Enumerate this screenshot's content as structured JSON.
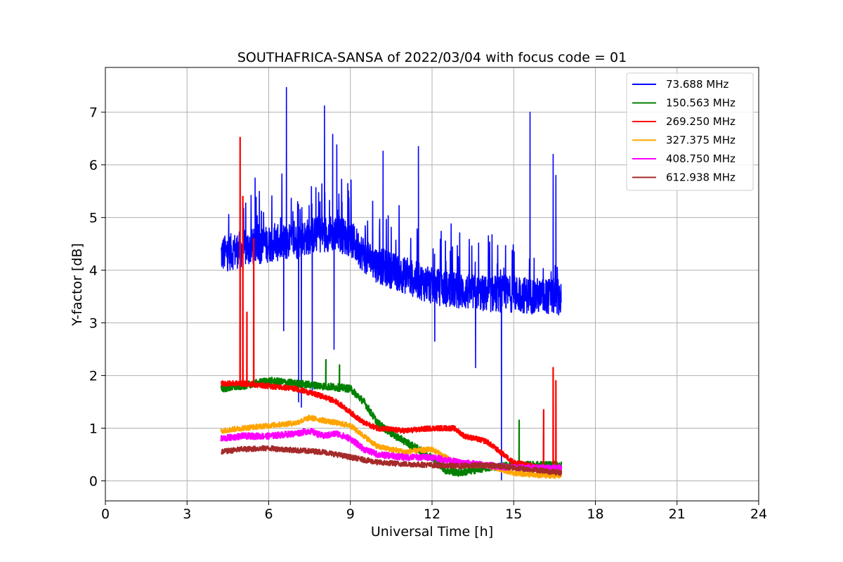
{
  "chart_data": {
    "type": "line",
    "title": "SOUTHAFRICA-SANSA of 2022/03/04 with focus code = 01",
    "xlabel": "Universal Time [h]",
    "ylabel": "Y-factor [dB]",
    "xlim": [
      0,
      24
    ],
    "ylim": [
      -0.38,
      7.85
    ],
    "xticks": [
      0,
      3,
      6,
      9,
      12,
      15,
      18,
      21,
      24
    ],
    "xtick_labels": [
      "0",
      "3",
      "6",
      "9",
      "12",
      "15",
      "18",
      "21",
      "24"
    ],
    "yticks": [
      0,
      1,
      2,
      3,
      4,
      5,
      6,
      7
    ],
    "ytick_labels": [
      "0",
      "1",
      "2",
      "3",
      "4",
      "5",
      "6",
      "7"
    ],
    "grid": true,
    "legend_position": "top-right",
    "series": [
      {
        "name": "  73.688 MHz",
        "color": "#0000ff",
        "noise": 0.35,
        "x": [
          4.25,
          5.0,
          6.0,
          7.0,
          7.5,
          8.0,
          8.5,
          9.0,
          9.5,
          10.0,
          11.0,
          12.0,
          13.0,
          14.0,
          15.0,
          16.0,
          16.75
        ],
        "values": [
          4.3,
          4.4,
          4.5,
          4.55,
          4.65,
          4.7,
          4.7,
          4.6,
          4.3,
          4.1,
          3.9,
          3.7,
          3.6,
          3.55,
          3.55,
          3.5,
          3.5
        ],
        "spikes": [
          [
            4.95,
            5.5
          ],
          [
            5.5,
            5.75
          ],
          [
            6.65,
            7.47
          ],
          [
            6.55,
            2.85
          ],
          [
            7.1,
            1.5
          ],
          [
            7.2,
            1.4
          ],
          [
            7.6,
            1.7
          ],
          [
            8.05,
            7.12
          ],
          [
            8.35,
            6.58
          ],
          [
            8.5,
            6.38
          ],
          [
            8.4,
            2.5
          ],
          [
            10.2,
            6.26
          ],
          [
            11.5,
            6.35
          ],
          [
            12.1,
            2.65
          ],
          [
            13.6,
            2.15
          ],
          [
            14.55,
            0.02
          ],
          [
            15.6,
            7.0
          ],
          [
            16.45,
            6.2
          ],
          [
            16.55,
            5.8
          ]
        ]
      },
      {
        "name": "150.563 MHz",
        "color": "#008000",
        "noise": 0.07,
        "x": [
          4.25,
          5.0,
          6.0,
          7.0,
          8.0,
          9.0,
          9.5,
          10.0,
          10.5,
          11.0,
          12.0,
          12.5,
          13.0,
          14.0,
          15.0,
          16.0,
          16.75
        ],
        "values": [
          1.75,
          1.8,
          1.9,
          1.85,
          1.8,
          1.75,
          1.5,
          1.1,
          0.9,
          0.75,
          0.45,
          0.2,
          0.15,
          0.25,
          0.3,
          0.3,
          0.3
        ],
        "spikes": [
          [
            8.1,
            2.3
          ],
          [
            8.6,
            2.2
          ],
          [
            15.2,
            1.15
          ],
          [
            16.1,
            0.9
          ]
        ]
      },
      {
        "name": "269.250 MHz",
        "color": "#ff0000",
        "noise": 0.05,
        "x": [
          4.25,
          5.0,
          6.0,
          7.0,
          8.0,
          8.5,
          9.0,
          9.5,
          10.0,
          11.0,
          12.0,
          12.8,
          13.2,
          14.0,
          14.5,
          15.0,
          16.0,
          16.75
        ],
        "values": [
          1.85,
          1.85,
          1.8,
          1.75,
          1.6,
          1.5,
          1.3,
          1.1,
          1.0,
          0.95,
          1.0,
          1.0,
          0.85,
          0.75,
          0.55,
          0.35,
          0.25,
          0.2
        ],
        "spikes": [
          [
            4.95,
            6.52
          ],
          [
            5.05,
            5.4
          ],
          [
            5.2,
            3.2
          ],
          [
            5.45,
            4.6
          ],
          [
            16.45,
            2.15
          ],
          [
            16.55,
            1.9
          ],
          [
            16.1,
            1.35
          ]
        ]
      },
      {
        "name": "327.375 MHz",
        "color": "#ffa500",
        "noise": 0.05,
        "x": [
          4.25,
          5.0,
          6.0,
          7.0,
          7.5,
          8.0,
          8.5,
          9.0,
          9.5,
          10.0,
          11.0,
          12.0,
          12.5,
          13.0,
          14.0,
          15.0,
          16.0,
          16.75
        ],
        "values": [
          0.95,
          1.0,
          1.05,
          1.1,
          1.2,
          1.15,
          1.1,
          1.05,
          0.85,
          0.65,
          0.55,
          0.6,
          0.45,
          0.3,
          0.3,
          0.15,
          0.1,
          0.1
        ],
        "spikes": []
      },
      {
        "name": "408.750 MHz",
        "color": "#ff00ff",
        "noise": 0.06,
        "x": [
          4.25,
          5.0,
          6.0,
          7.0,
          7.5,
          8.0,
          8.5,
          9.0,
          9.5,
          10.0,
          11.0,
          12.0,
          13.0,
          14.0,
          15.0,
          16.0,
          16.75
        ],
        "values": [
          0.8,
          0.85,
          0.85,
          0.9,
          0.95,
          0.85,
          0.9,
          0.8,
          0.6,
          0.5,
          0.45,
          0.45,
          0.35,
          0.3,
          0.25,
          0.25,
          0.25
        ],
        "spikes": []
      },
      {
        "name": "612.938 MHz",
        "color": "#a52a2a",
        "noise": 0.05,
        "x": [
          4.25,
          5.0,
          6.0,
          7.0,
          8.0,
          8.5,
          9.0,
          9.5,
          10.0,
          11.0,
          12.0,
          13.0,
          14.0,
          15.0,
          16.0,
          16.75
        ],
        "values": [
          0.55,
          0.6,
          0.62,
          0.58,
          0.55,
          0.5,
          0.45,
          0.4,
          0.35,
          0.32,
          0.3,
          0.28,
          0.3,
          0.25,
          0.2,
          0.15
        ],
        "spikes": []
      }
    ]
  }
}
